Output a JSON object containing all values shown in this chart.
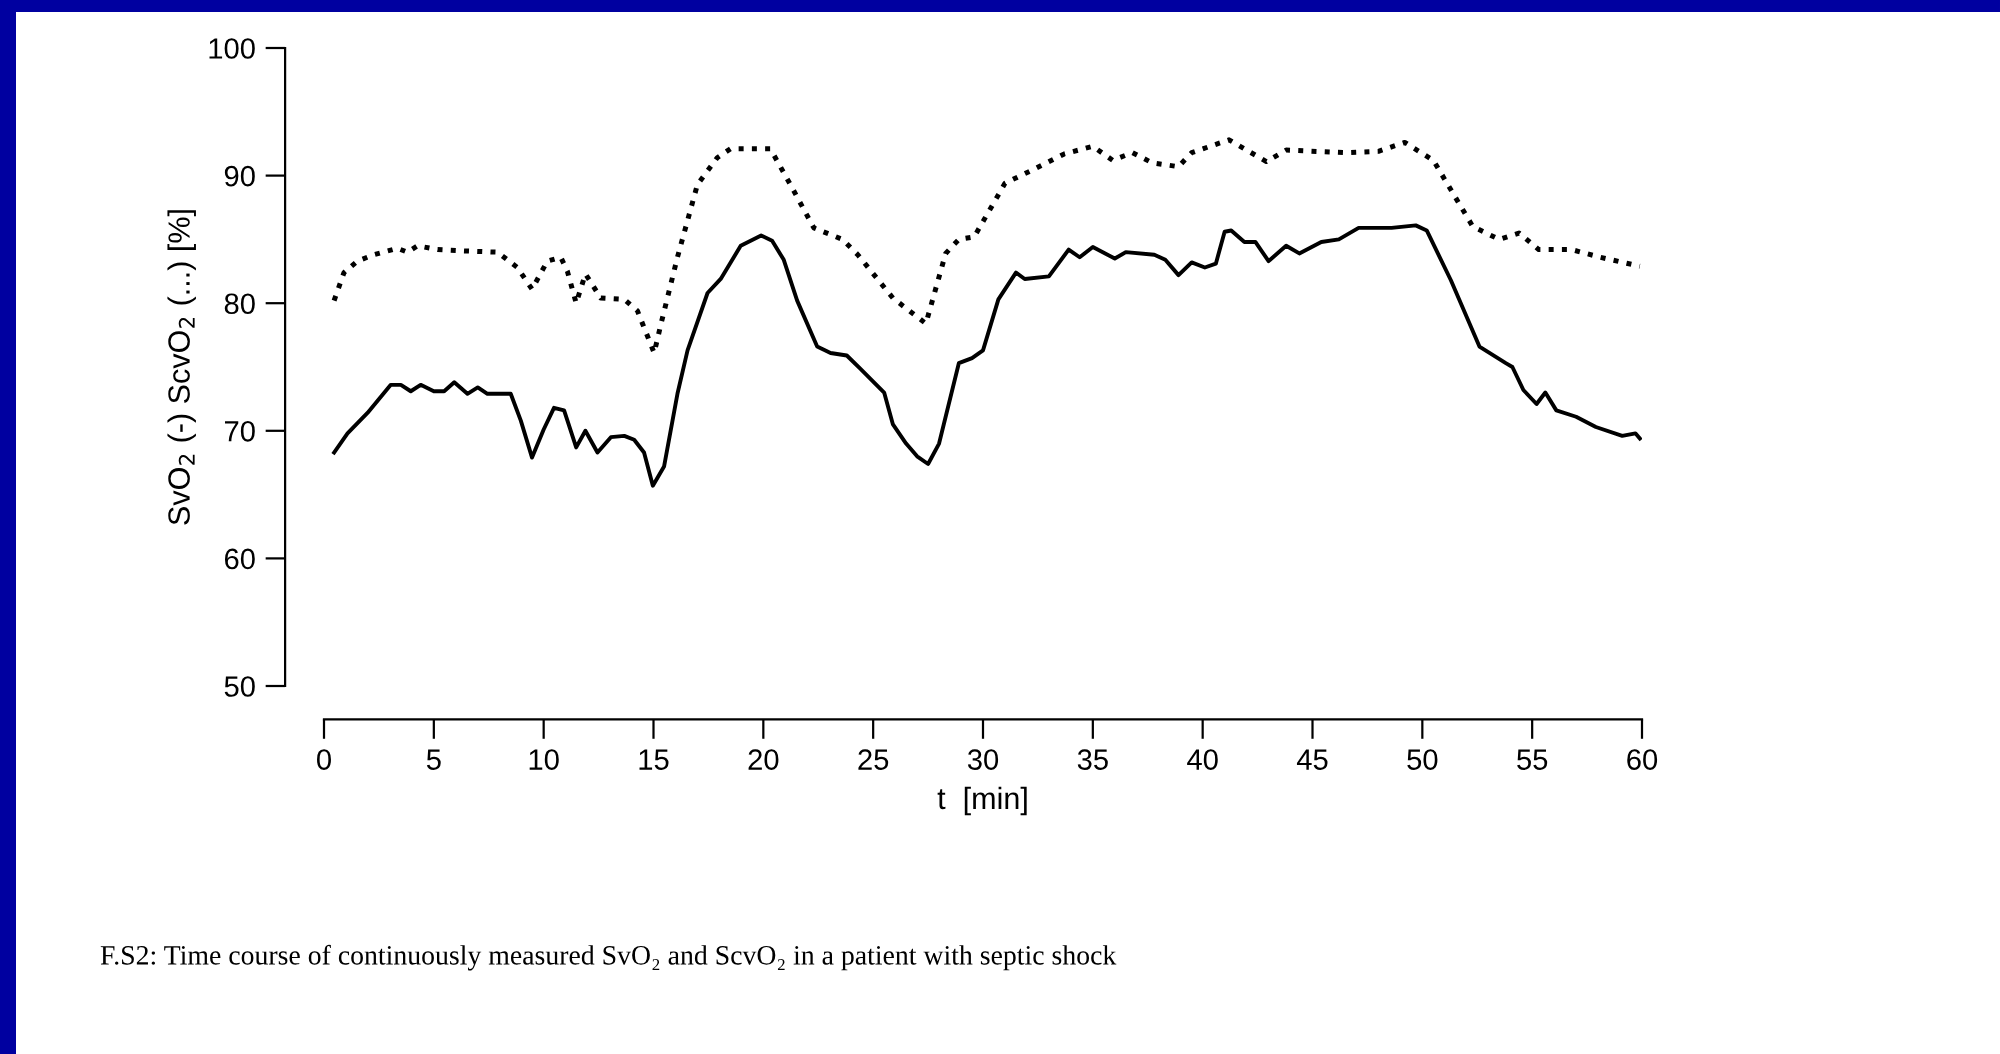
{
  "chart_data": {
    "type": "line",
    "xlabel": "t  [min]",
    "ylabel": "SvO$_{2}$ (-) ScvO$_{2}$ (...) [%]",
    "xlim": [
      0,
      60
    ],
    "ylim": [
      50,
      100
    ],
    "xticks": [
      0,
      5,
      10,
      15,
      20,
      25,
      30,
      35,
      40,
      45,
      50,
      55,
      60
    ],
    "yticks": [
      50,
      60,
      70,
      80,
      90,
      100
    ],
    "grid": false,
    "legend": false,
    "marker": "none",
    "annotations": [
      "F.S2: Time course of continuously measured SvO₂ and ScvO₂ in a patient with septic shock"
    ],
    "series": [
      {
        "color": "#000000",
        "line_style": "solid",
        "x": [
          0.46,
          1.07,
          1.98,
          3.04,
          3.5,
          3.95,
          4.4,
          5.0,
          5.47,
          5.93,
          6.53,
          7.0,
          7.44,
          8.5,
          8.96,
          9.47,
          10.0,
          10.47,
          10.93,
          11.48,
          11.9,
          12.45,
          13.06,
          13.67,
          14.12,
          14.57,
          14.97,
          15.48,
          16.09,
          16.55,
          17.46,
          18.06,
          18.97,
          19.9,
          20.4,
          20.93,
          21.54,
          22.45,
          23.06,
          23.8,
          24.4,
          25.5,
          25.9,
          26.5,
          27.0,
          27.5,
          28.0,
          28.9,
          29.5,
          30.0,
          30.7,
          31.5,
          31.9,
          33.0,
          33.9,
          34.4,
          35.0,
          36.0,
          36.5,
          37.8,
          38.3,
          38.9,
          39.5,
          40.1,
          40.6,
          41.0,
          41.3,
          41.9,
          42.4,
          43.0,
          43.8,
          44.4,
          45.4,
          46.2,
          47.1,
          48.6,
          49.7,
          50.2,
          51.3,
          52.6,
          53.8,
          54.1,
          54.6,
          55.2,
          55.6,
          56.1,
          57.0,
          57.9,
          59.1,
          59.7,
          59.9
        ],
        "values": [
          68.3,
          69.8,
          71.4,
          73.6,
          73.6,
          73.1,
          73.6,
          73.1,
          73.1,
          73.8,
          72.9,
          73.4,
          72.9,
          72.9,
          70.8,
          67.9,
          70.1,
          71.8,
          71.6,
          68.7,
          70.0,
          68.3,
          69.5,
          69.6,
          69.3,
          68.3,
          65.7,
          67.2,
          72.9,
          76.3,
          80.8,
          81.9,
          84.5,
          85.3,
          84.9,
          83.4,
          80.2,
          76.6,
          76.1,
          75.9,
          74.9,
          73.0,
          70.5,
          69.0,
          68.0,
          67.4,
          69.0,
          75.3,
          75.7,
          76.3,
          80.3,
          82.4,
          81.9,
          82.1,
          84.2,
          83.6,
          84.4,
          83.5,
          84.0,
          83.8,
          83.4,
          82.2,
          83.2,
          82.8,
          83.1,
          85.6,
          85.7,
          84.8,
          84.8,
          83.3,
          84.5,
          83.9,
          84.8,
          85.0,
          85.9,
          85.9,
          86.1,
          85.7,
          81.8,
          76.6,
          75.3,
          75.0,
          73.2,
          72.1,
          73.0,
          71.6,
          71.1,
          70.3,
          69.6,
          69.8,
          69.4
        ]
      },
      {
        "color": "#000000",
        "line_style": "dotted",
        "x": [
          0.46,
          0.91,
          1.52,
          2.27,
          3.34,
          3.8,
          4.26,
          5.17,
          6.38,
          7.9,
          8.8,
          9.47,
          10.17,
          10.78,
          11.08,
          11.48,
          11.9,
          12.6,
          13.67,
          14.27,
          15.03,
          15.33,
          16.09,
          17.0,
          17.9,
          18.5,
          20.32,
          21.23,
          22.3,
          23.6,
          24.3,
          25.9,
          27.4,
          28.3,
          28.9,
          29.6,
          31.0,
          32.2,
          33.7,
          35.0,
          35.9,
          36.8,
          37.7,
          38.9,
          39.5,
          41.2,
          42.9,
          43.8,
          46.5,
          48.0,
          49.2,
          50.5,
          52.3,
          53.5,
          54.4,
          55.3,
          56.8,
          58.1,
          59.9
        ],
        "values": [
          80.2,
          82.4,
          83.3,
          83.8,
          84.3,
          84.0,
          84.5,
          84.2,
          84.1,
          84.0,
          82.8,
          81.1,
          83.3,
          83.6,
          82.5,
          80.0,
          82.3,
          80.4,
          80.3,
          79.4,
          76.1,
          78.3,
          83.6,
          89.3,
          91.4,
          92.1,
          92.1,
          89.3,
          85.9,
          85.0,
          83.8,
          80.4,
          78.4,
          83.9,
          85.0,
          85.2,
          89.4,
          90.4,
          91.7,
          92.3,
          91.2,
          91.8,
          91.0,
          90.7,
          91.8,
          92.8,
          91.1,
          92.0,
          91.8,
          91.9,
          92.6,
          91.2,
          86.0,
          85.0,
          85.5,
          84.2,
          84.2,
          83.6,
          82.9
        ]
      }
    ]
  }
}
